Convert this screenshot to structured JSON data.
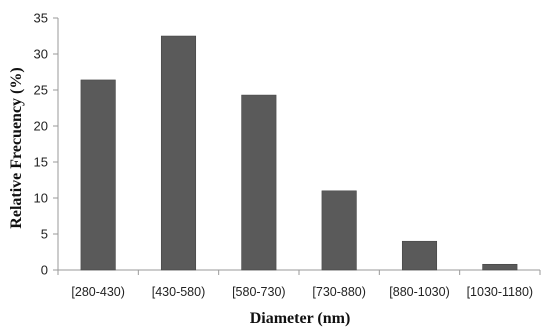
{
  "chart_data": {
    "type": "bar",
    "categories": [
      "[280-430)",
      "[430-580)",
      "[580-730)",
      "[730-880)",
      "[880-1030)",
      "[1030-1180)"
    ],
    "values": [
      26.4,
      32.5,
      24.3,
      11.0,
      4.0,
      0.8
    ],
    "xlabel": "Diameter (nm)",
    "ylabel": "Relative Frecuency (%)",
    "ylim": [
      0,
      35
    ],
    "yticks": [
      0,
      5,
      10,
      15,
      20,
      25,
      30,
      35
    ],
    "grid": false,
    "legend": "none",
    "bar_color": "#5a5a5a"
  }
}
